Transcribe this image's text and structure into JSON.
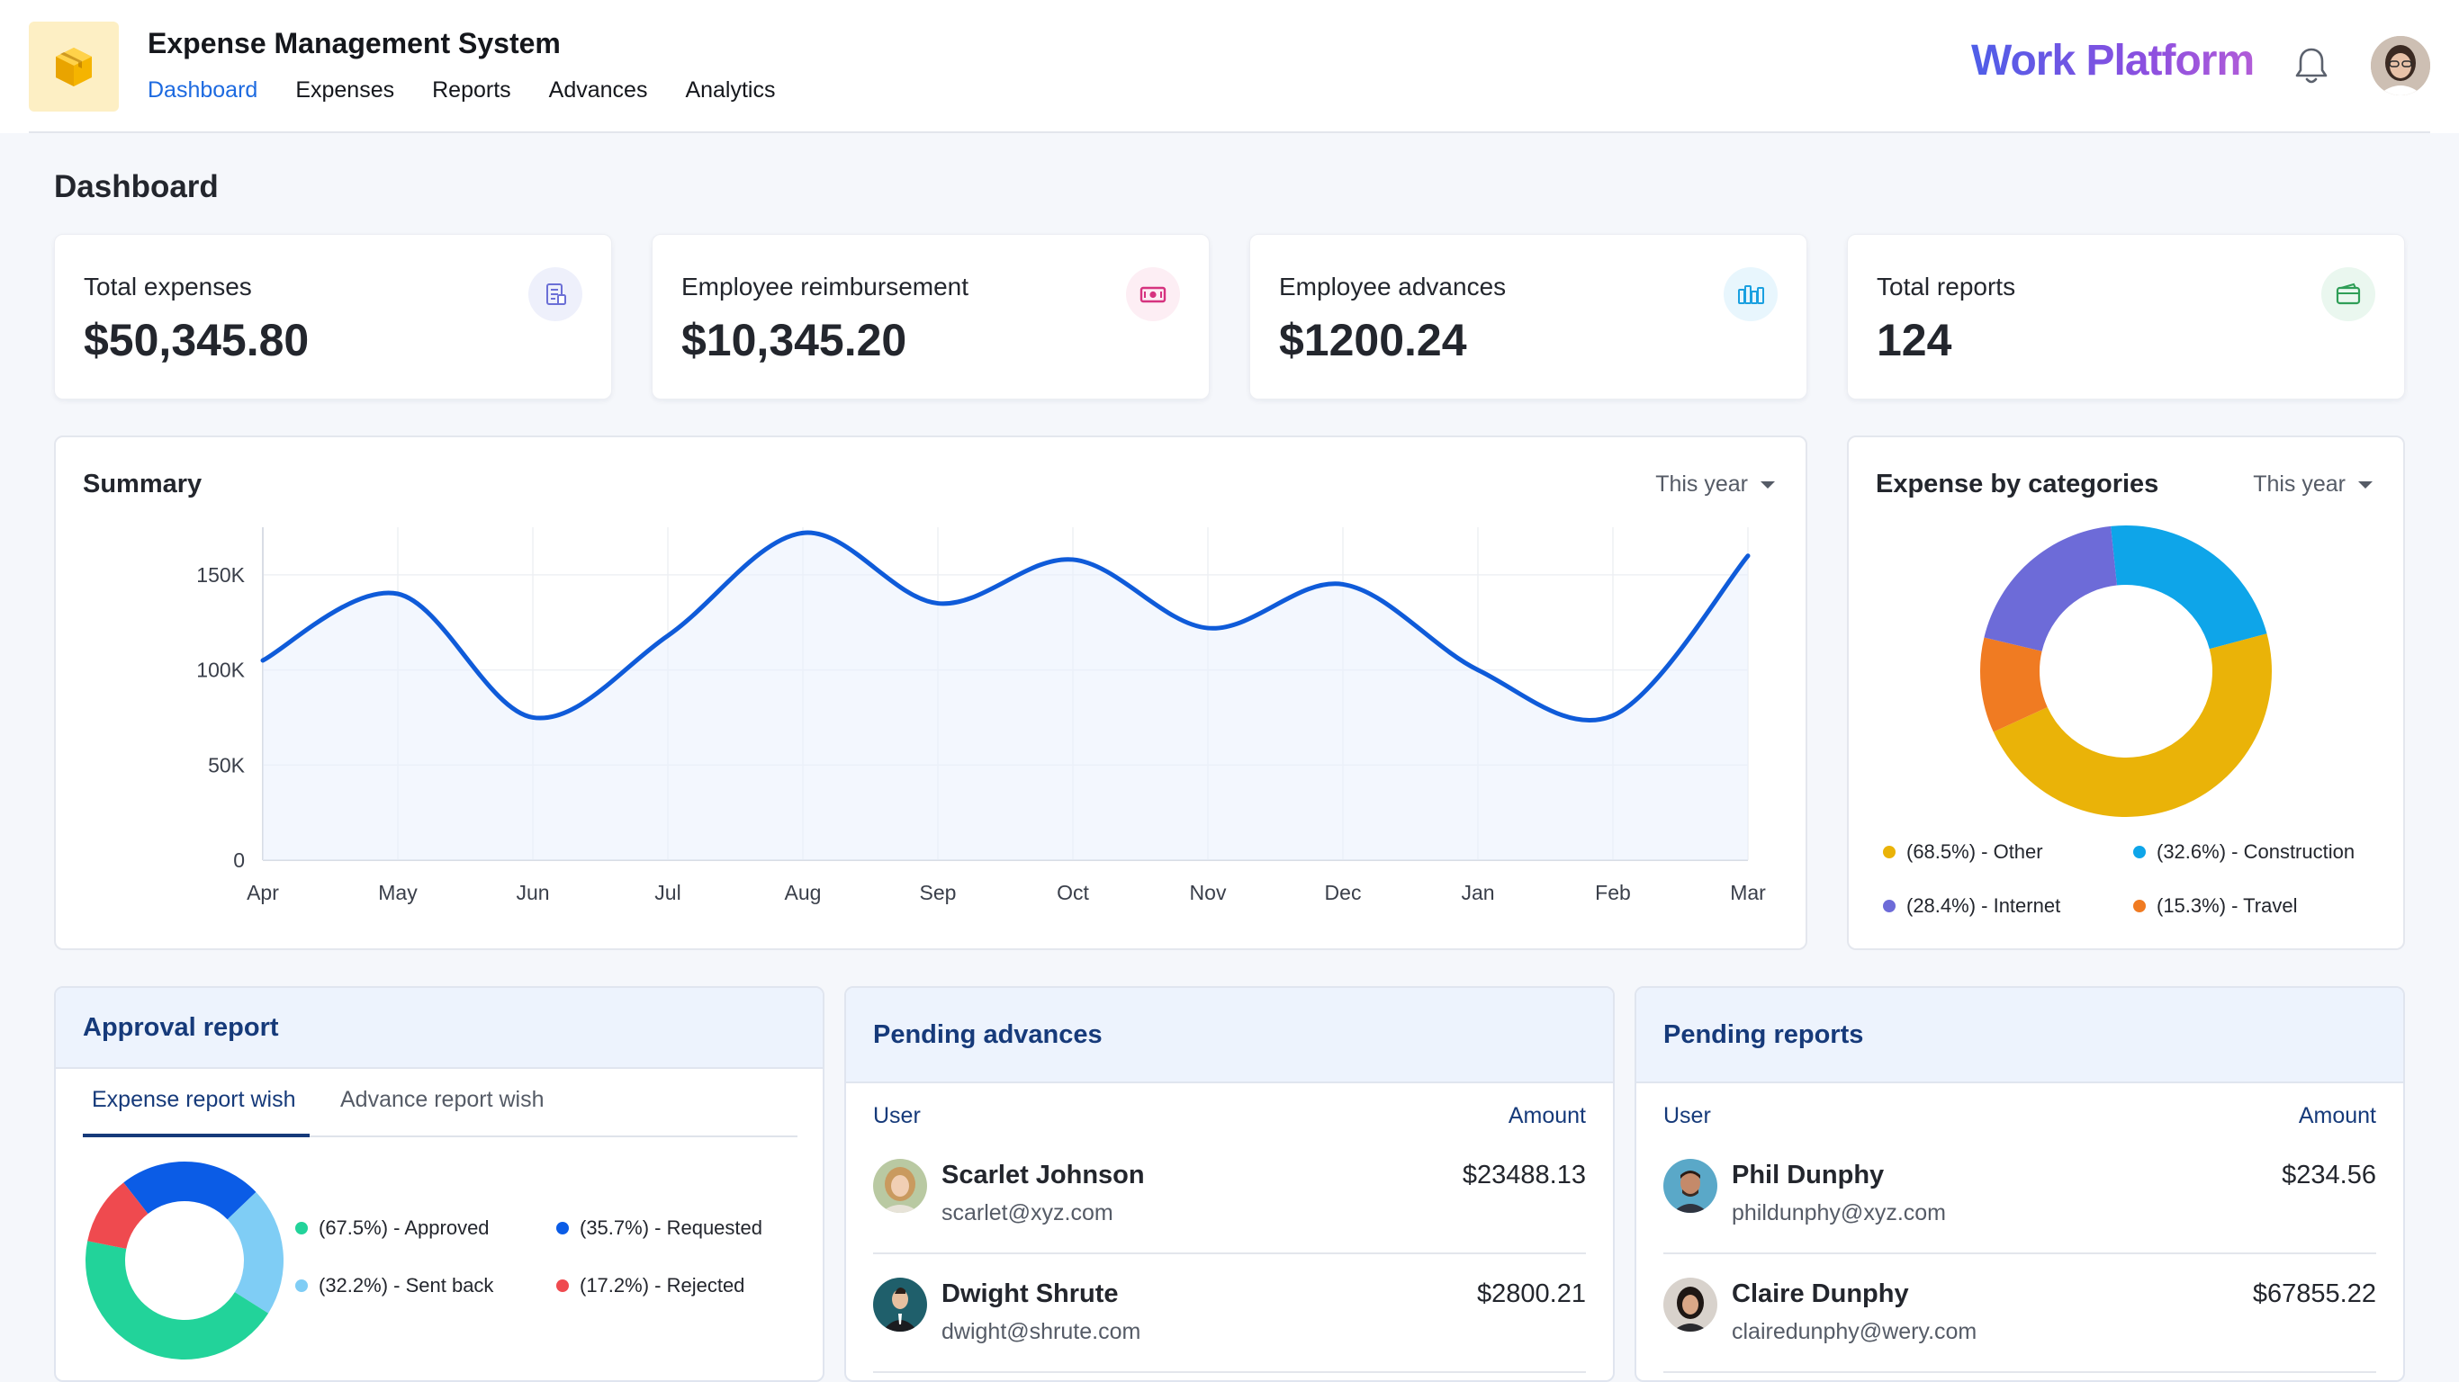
{
  "header": {
    "app_title": "Expense Management System",
    "nav": [
      {
        "label": "Dashboard",
        "active": true
      },
      {
        "label": "Expenses",
        "active": false
      },
      {
        "label": "Reports",
        "active": false
      },
      {
        "label": "Advances",
        "active": false
      },
      {
        "label": "Analytics",
        "active": false
      }
    ],
    "brand": "Work Platform",
    "icons": {
      "logo": "box-icon",
      "notifications": "bell-icon"
    }
  },
  "page": {
    "title": "Dashboard"
  },
  "stats": [
    {
      "label": "Total expenses",
      "value": "$50,345.80",
      "icon": "receipt-icon",
      "icon_color": "#6b6fd6",
      "icon_bg": "#eef0fb"
    },
    {
      "label": "Employee reimbursement",
      "value": "$10,345.20",
      "icon": "cash-icon",
      "icon_color": "#d6337f",
      "icon_bg": "#fdeef4"
    },
    {
      "label": "Employee advances",
      "value": "$1200.24",
      "icon": "coins-icon",
      "icon_color": "#1aa0e0",
      "icon_bg": "#e8f6fd"
    },
    {
      "label": "Total reports",
      "value": "124",
      "icon": "wallet-icon",
      "icon_color": "#2f9e57",
      "icon_bg": "#eaf7ef"
    }
  ],
  "summary": {
    "title": "Summary",
    "period": "This year",
    "chart_data": {
      "type": "area",
      "categories": [
        "Apr",
        "May",
        "Jun",
        "Jul",
        "Aug",
        "Sep",
        "Oct",
        "Nov",
        "Dec",
        "Jan",
        "Feb",
        "Mar"
      ],
      "values": [
        105000,
        140000,
        75000,
        118000,
        172000,
        135000,
        158000,
        122000,
        145000,
        100000,
        76000,
        160000
      ],
      "yticks": [
        "0",
        "50K",
        "100K",
        "150K"
      ],
      "ylim": [
        0,
        175000
      ],
      "color": "#0f5bd9"
    }
  },
  "categories_panel": {
    "title": "Expense by categories",
    "period": "This year",
    "chart_data": {
      "type": "pie",
      "slices": [
        {
          "label": "(68.5%) - Other",
          "value": 68.5,
          "color": "#eab308"
        },
        {
          "label": "(32.6%) - Construction",
          "value": 32.6,
          "color": "#0ea5e9"
        },
        {
          "label": "(28.4%) - Internet",
          "value": 28.4,
          "color": "#6d6bd8"
        },
        {
          "label": "(15.3%) - Travel",
          "value": 15.3,
          "color": "#f07b22"
        }
      ]
    }
  },
  "approval": {
    "title": "Approval report",
    "tabs": [
      {
        "label": "Expense report wish",
        "active": true
      },
      {
        "label": "Advance report wish",
        "active": false
      }
    ],
    "chart_data": {
      "type": "pie",
      "slices": [
        {
          "label": "(67.5%) - Approved",
          "value": 67.5,
          "color": "#22d39a"
        },
        {
          "label": "(35.7%) - Requested",
          "value": 35.7,
          "color": "#0b5ce6"
        },
        {
          "label": "(32.2%) - Sent back",
          "value": 32.2,
          "color": "#7fcdf5"
        },
        {
          "label": "(17.2%) - Rejected",
          "value": 17.2,
          "color": "#ef4a4f"
        }
      ]
    }
  },
  "pending_advances": {
    "title": "Pending advances",
    "col_user": "User",
    "col_amount": "Amount",
    "rows": [
      {
        "name": "Scarlet Johnson",
        "email": "scarlet@xyz.com",
        "amount": "$23488.13",
        "avatar_color": "#c99a5f"
      },
      {
        "name": "Dwight Shrute",
        "email": "dwight@shrute.com",
        "amount": "$2800.21",
        "avatar_color": "#1f5f6b"
      }
    ]
  },
  "pending_reports": {
    "title": "Pending reports",
    "col_user": "User",
    "col_amount": "Amount",
    "rows": [
      {
        "name": "Phil Dunphy",
        "email": "phildunphy@xyz.com",
        "amount": "$234.56",
        "avatar_color": "#5aa8c8"
      },
      {
        "name": "Claire Dunphy",
        "email": "clairedunphy@wery.com",
        "amount": "$67855.22",
        "avatar_color": "#d8d2cc"
      }
    ]
  }
}
